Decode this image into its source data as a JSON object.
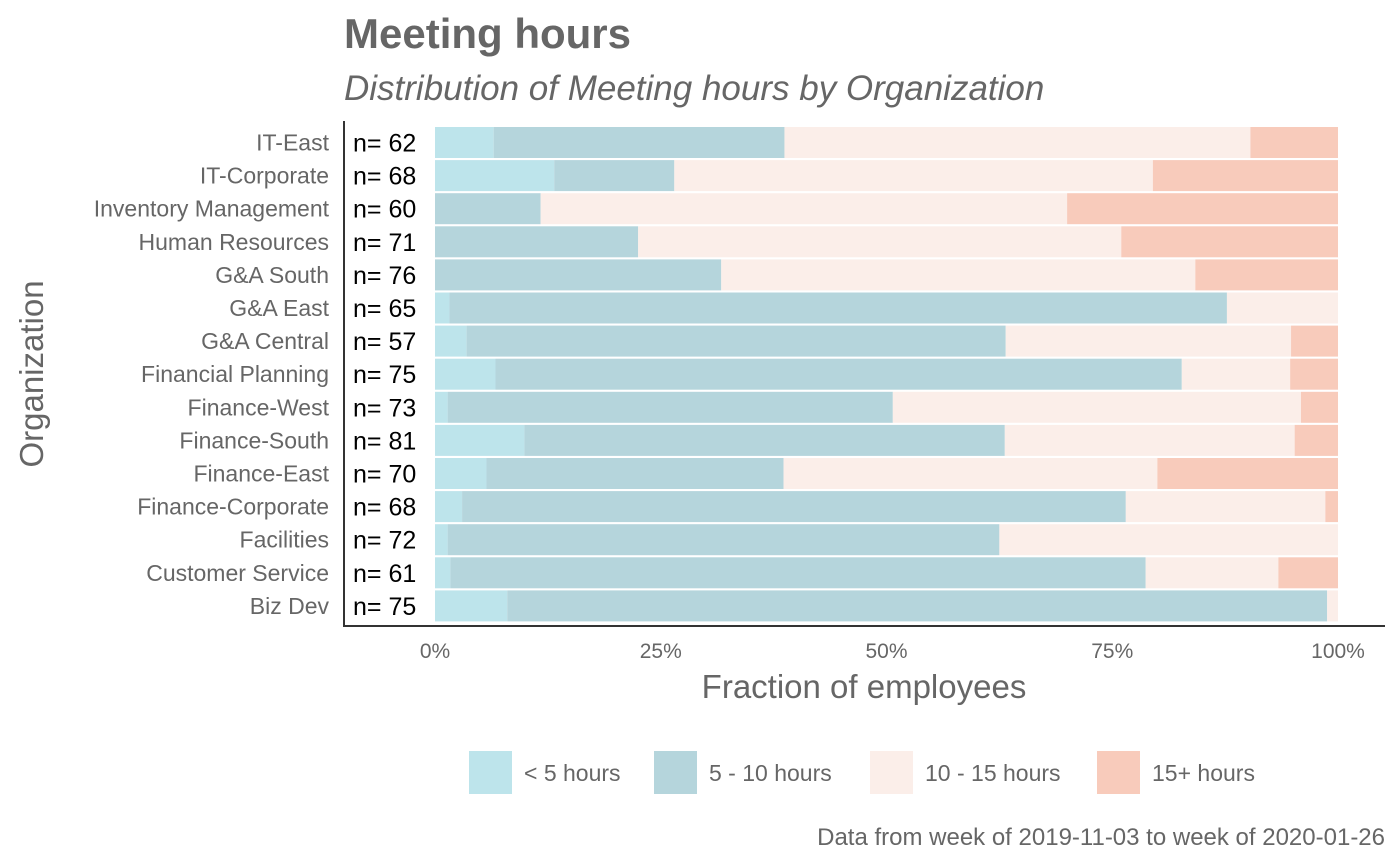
{
  "chart_data": {
    "type": "bar",
    "orientation": "horizontal",
    "stacked": true,
    "title": "Meeting hours",
    "subtitle": "Distribution of Meeting hours by Organization",
    "xlabel": "Fraction of employees",
    "ylabel": "Organization",
    "caption": "Data from week of 2019-11-03 to week of 2020-01-26",
    "xlim": [
      0,
      1
    ],
    "x_ticks": [
      0,
      0.25,
      0.5,
      0.75,
      1
    ],
    "x_tick_labels": [
      "0%",
      "25%",
      "50%",
      "75%",
      "100%"
    ],
    "grid": false,
    "legend_position": "bottom",
    "categories": [
      "IT-East",
      "IT-Corporate",
      "Inventory Management",
      "Human Resources",
      "G&A South",
      "G&A East",
      "G&A Central",
      "Financial Planning",
      "Finance-West",
      "Finance-South",
      "Finance-East",
      "Finance-Corporate",
      "Facilities",
      "Customer Service",
      "Biz Dev"
    ],
    "n_labels": [
      "n= 62",
      "n= 68",
      "n= 60",
      "n= 71",
      "n= 76",
      "n= 65",
      "n= 57",
      "n= 75",
      "n= 73",
      "n= 81",
      "n= 70",
      "n= 68",
      "n= 72",
      "n= 61",
      "n= 75"
    ],
    "series": [
      {
        "name": "< 5 hours",
        "color": "#bde4eb",
        "values": [
          0.065,
          0.132,
          0.0,
          0.0,
          0.0,
          0.016,
          0.035,
          0.067,
          0.014,
          0.099,
          0.057,
          0.03,
          0.014,
          0.017,
          0.08
        ]
      },
      {
        "name": "5 - 10 hours",
        "color": "#b5d5dc",
        "values": [
          0.322,
          0.133,
          0.117,
          0.225,
          0.317,
          0.861,
          0.597,
          0.76,
          0.493,
          0.532,
          0.329,
          0.735,
          0.611,
          0.77,
          0.908
        ]
      },
      {
        "name": "10 - 15 hours",
        "color": "#fbeee9",
        "values": [
          0.516,
          0.53,
          0.583,
          0.535,
          0.525,
          0.123,
          0.316,
          0.12,
          0.452,
          0.321,
          0.414,
          0.221,
          0.375,
          0.147,
          0.012
        ]
      },
      {
        "name": "15+ hours",
        "color": "#f8cbbb",
        "values": [
          0.097,
          0.205,
          0.3,
          0.24,
          0.158,
          0.0,
          0.052,
          0.053,
          0.041,
          0.048,
          0.2,
          0.014,
          0.0,
          0.066,
          0.0
        ]
      }
    ]
  }
}
